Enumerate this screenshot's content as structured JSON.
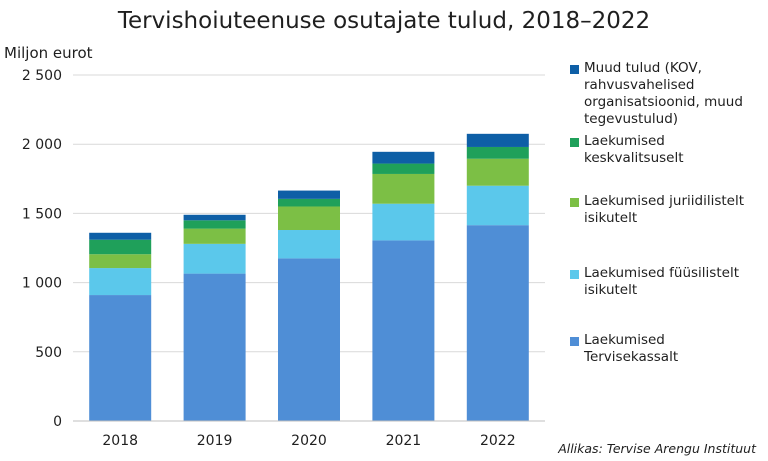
{
  "title": "Tervishoiuteenuse osutajate tulud, 2018–2022",
  "source": "Allikas: Tervise Arengu Instituut",
  "chart_data": {
    "type": "bar",
    "stacked": true,
    "title": "Tervishoiuteenuse osutajate tulud, 2018–2022",
    "ylabel": "Miljon eurot",
    "xlabel": "",
    "categories": [
      "2018",
      "2019",
      "2020",
      "2021",
      "2022"
    ],
    "ylim": [
      0,
      2500
    ],
    "yticks": [
      0,
      500,
      1000,
      1500,
      2000,
      2500
    ],
    "ytick_labels": [
      "0",
      "500",
      "1 000",
      "1 500",
      "2 000",
      "2 500"
    ],
    "grid": "horizontal",
    "legend_position": "right",
    "series": [
      {
        "name": "Laekumised Tervisekassalt",
        "color": "#4f8ed6",
        "values": [
          910,
          1065,
          1175,
          1305,
          1415
        ]
      },
      {
        "name": "Laekumised füüsilistelt isikutelt",
        "color": "#5bc8eb",
        "values": [
          195,
          215,
          205,
          265,
          285
        ]
      },
      {
        "name": "Laekumised juriidilistelt isikutelt",
        "color": "#7cbf45",
        "values": [
          100,
          110,
          170,
          215,
          195
        ]
      },
      {
        "name": "Laekumised keskvalitsuselt",
        "color": "#1fa05a",
        "values": [
          105,
          60,
          55,
          75,
          85
        ]
      },
      {
        "name": "Muud tulud (KOV, rahvusvahelised organisatsioonid, muud tegevustulud)",
        "color": "#0e5fa6",
        "values": [
          50,
          40,
          60,
          85,
          95
        ]
      }
    ]
  }
}
